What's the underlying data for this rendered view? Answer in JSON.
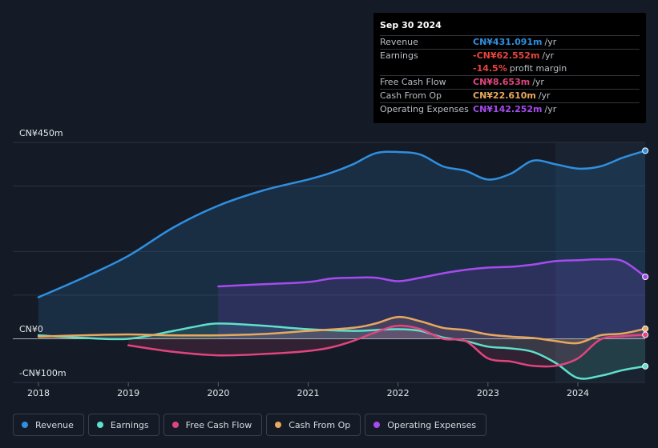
{
  "chart_data": {
    "type": "line",
    "title": "",
    "y_labels": [
      "CN¥450m",
      "CN¥0",
      "-CN¥100m"
    ],
    "ylim": [
      -100,
      450
    ],
    "x_ticks": [
      "2018",
      "2019",
      "2020",
      "2021",
      "2022",
      "2023",
      "2024"
    ],
    "x_tick_values": [
      2018,
      2019,
      2020,
      2021,
      2022,
      2023,
      2024
    ],
    "xlim": [
      2017.7,
      2024.75
    ],
    "highlight_start": 2023.75,
    "series": [
      {
        "name": "Revenue",
        "key": "revenue",
        "color": "#2f8fe0",
        "fill": true,
        "points": [
          [
            2018.0,
            95
          ],
          [
            2018.5,
            140
          ],
          [
            2019.0,
            190
          ],
          [
            2019.5,
            255
          ],
          [
            2020.0,
            305
          ],
          [
            2020.5,
            340
          ],
          [
            2021.0,
            365
          ],
          [
            2021.25,
            380
          ],
          [
            2021.5,
            400
          ],
          [
            2021.75,
            425
          ],
          [
            2022.0,
            428
          ],
          [
            2022.25,
            422
          ],
          [
            2022.5,
            395
          ],
          [
            2022.75,
            385
          ],
          [
            2023.0,
            365
          ],
          [
            2023.25,
            378
          ],
          [
            2023.5,
            408
          ],
          [
            2023.75,
            400
          ],
          [
            2024.0,
            390
          ],
          [
            2024.25,
            395
          ],
          [
            2024.5,
            415
          ],
          [
            2024.75,
            431
          ]
        ]
      },
      {
        "name": "Earnings",
        "key": "earnings",
        "color": "#5fe0cc",
        "fill": true,
        "points": [
          [
            2018.0,
            8
          ],
          [
            2018.5,
            2
          ],
          [
            2019.0,
            0
          ],
          [
            2019.5,
            18
          ],
          [
            2019.75,
            28
          ],
          [
            2020.0,
            35
          ],
          [
            2020.5,
            30
          ],
          [
            2021.0,
            22
          ],
          [
            2021.5,
            18
          ],
          [
            2021.75,
            20
          ],
          [
            2022.0,
            22
          ],
          [
            2022.25,
            18
          ],
          [
            2022.5,
            3
          ],
          [
            2022.75,
            -5
          ],
          [
            2023.0,
            -18
          ],
          [
            2023.25,
            -22
          ],
          [
            2023.5,
            -30
          ],
          [
            2023.75,
            -55
          ],
          [
            2024.0,
            -90
          ],
          [
            2024.25,
            -85
          ],
          [
            2024.5,
            -72
          ],
          [
            2024.75,
            -63
          ]
        ]
      },
      {
        "name": "Free Cash Flow",
        "key": "fcf",
        "color": "#e0457e",
        "fill": true,
        "points": [
          [
            2019.0,
            -15
          ],
          [
            2019.5,
            -30
          ],
          [
            2020.0,
            -38
          ],
          [
            2020.5,
            -35
          ],
          [
            2021.0,
            -28
          ],
          [
            2021.25,
            -20
          ],
          [
            2021.5,
            -5
          ],
          [
            2021.75,
            15
          ],
          [
            2022.0,
            30
          ],
          [
            2022.25,
            22
          ],
          [
            2022.5,
            0
          ],
          [
            2022.75,
            -5
          ],
          [
            2023.0,
            -45
          ],
          [
            2023.25,
            -52
          ],
          [
            2023.5,
            -62
          ],
          [
            2023.75,
            -62
          ],
          [
            2024.0,
            -45
          ],
          [
            2024.25,
            -2
          ],
          [
            2024.5,
            6
          ],
          [
            2024.75,
            9
          ]
        ]
      },
      {
        "name": "Cash From Op",
        "key": "cfo",
        "color": "#e8a85e",
        "fill": true,
        "points": [
          [
            2018.0,
            5
          ],
          [
            2018.5,
            8
          ],
          [
            2019.0,
            10
          ],
          [
            2019.5,
            8
          ],
          [
            2020.0,
            8
          ],
          [
            2020.5,
            11
          ],
          [
            2021.0,
            18
          ],
          [
            2021.5,
            25
          ],
          [
            2021.75,
            35
          ],
          [
            2022.0,
            50
          ],
          [
            2022.25,
            40
          ],
          [
            2022.5,
            25
          ],
          [
            2022.75,
            20
          ],
          [
            2023.0,
            10
          ],
          [
            2023.25,
            5
          ],
          [
            2023.5,
            2
          ],
          [
            2023.75,
            -5
          ],
          [
            2024.0,
            -10
          ],
          [
            2024.25,
            8
          ],
          [
            2024.5,
            12
          ],
          [
            2024.75,
            23
          ]
        ]
      },
      {
        "name": "Operating Expenses",
        "key": "opex",
        "color": "#a64bef",
        "fill": true,
        "points": [
          [
            2020.0,
            120
          ],
          [
            2020.5,
            125
          ],
          [
            2021.0,
            130
          ],
          [
            2021.25,
            138
          ],
          [
            2021.5,
            140
          ],
          [
            2021.75,
            140
          ],
          [
            2022.0,
            132
          ],
          [
            2022.25,
            140
          ],
          [
            2022.5,
            150
          ],
          [
            2022.75,
            158
          ],
          [
            2023.0,
            163
          ],
          [
            2023.25,
            165
          ],
          [
            2023.5,
            170
          ],
          [
            2023.75,
            178
          ],
          [
            2024.0,
            180
          ],
          [
            2024.25,
            182
          ],
          [
            2024.5,
            178
          ],
          [
            2024.75,
            142
          ]
        ]
      }
    ]
  },
  "tooltip": {
    "date": "Sep 30 2024",
    "rows": [
      {
        "label": "Revenue",
        "value": "CN¥431.091m",
        "unit": "/yr",
        "color": "#2f8fe0"
      },
      {
        "label": "Earnings",
        "value": "-CN¥62.552m",
        "unit": "/yr",
        "color": "#e8453c"
      },
      {
        "label": "",
        "value": "-14.5%",
        "unit": "profit margin",
        "color": "#e8453c"
      },
      {
        "label": "Free Cash Flow",
        "value": "CN¥8.653m",
        "unit": "/yr",
        "color": "#e0457e"
      },
      {
        "label": "Cash From Op",
        "value": "CN¥22.610m",
        "unit": "/yr",
        "color": "#e8a85e"
      },
      {
        "label": "Operating Expenses",
        "value": "CN¥142.252m",
        "unit": "/yr",
        "color": "#a64bef"
      }
    ]
  },
  "legend": [
    {
      "label": "Revenue",
      "color": "#2f8fe0"
    },
    {
      "label": "Earnings",
      "color": "#5fe0cc"
    },
    {
      "label": "Free Cash Flow",
      "color": "#e0457e"
    },
    {
      "label": "Cash From Op",
      "color": "#e8a85e"
    },
    {
      "label": "Operating Expenses",
      "color": "#a64bef"
    }
  ]
}
